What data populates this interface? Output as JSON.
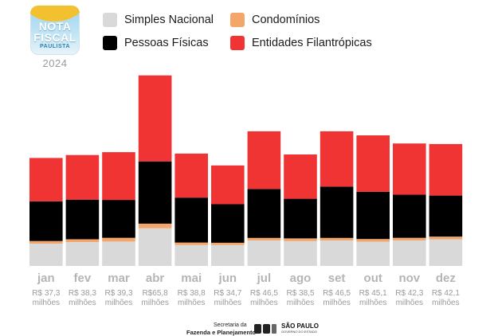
{
  "logo": {
    "line1": "NOTA",
    "line2": "FISCAL",
    "line3": "PAULISTA",
    "year": "2024"
  },
  "legend": [
    {
      "label": "Simples Nacional",
      "color": "#d9d9d9"
    },
    {
      "label": "Condomínios",
      "color": "#f4a56a"
    },
    {
      "label": "Pessoas Físicas",
      "color": "#000000"
    },
    {
      "label": "Entidades Filantrópicas",
      "color": "#f03434"
    }
  ],
  "footer": {
    "secretaria": "Secretaria da",
    "fazenda": "Fazenda e Planejamento",
    "sao_paulo": "SÃO PAULO",
    "governo": "GOVERNO DO ESTADO"
  },
  "chart_data": {
    "type": "bar",
    "stacked": true,
    "categories": [
      "jan",
      "fev",
      "mar",
      "abr",
      "mai",
      "jun",
      "jul",
      "ago",
      "set",
      "out",
      "nov",
      "dez"
    ],
    "totals": [
      "R$ 37,3 milhões",
      "R$ 38,3 milhões",
      "R$ 39,3 milhões",
      "R$65,8 milhões",
      "R$ 38,8 milhões",
      "R$ 34,7 milhões",
      "R$ 46,5 milhões",
      "R$ 38,5 milhões",
      "R$ 46,5 milhões",
      "R$ 45,1 milhões",
      "R$ 42,3 milhões",
      "R$ 42,1 milhões"
    ],
    "total_values": [
      37.3,
      38.3,
      39.3,
      65.8,
      38.8,
      34.7,
      46.5,
      38.5,
      46.5,
      45.1,
      42.3,
      42.1
    ],
    "series": [
      {
        "name": "Simples Nacional",
        "color": "#d9d9d9",
        "values": [
          7.7,
          8.2,
          8.4,
          13.0,
          7.2,
          7.2,
          8.8,
          8.6,
          8.8,
          8.4,
          8.8,
          9.2
        ]
      },
      {
        "name": "Condomínios",
        "color": "#f4a56a",
        "values": [
          0.9,
          1.0,
          1.3,
          1.6,
          0.9,
          0.8,
          0.9,
          0.9,
          0.9,
          0.9,
          0.9,
          0.9
        ]
      },
      {
        "name": "Pessoas Físicas",
        "color": "#000000",
        "values": [
          13.7,
          13.7,
          13.1,
          21.5,
          15.5,
          13.3,
          16.9,
          13.7,
          17.7,
          16.3,
          14.9,
          14.2
        ]
      },
      {
        "name": "Entidades Filantrópicas",
        "color": "#f03434",
        "values": [
          15.0,
          15.4,
          16.5,
          29.7,
          15.2,
          13.4,
          19.9,
          15.3,
          19.1,
          19.5,
          17.7,
          17.8
        ]
      }
    ],
    "ylim": [
      0,
      66
    ],
    "grid": false,
    "legend_position": "top"
  }
}
